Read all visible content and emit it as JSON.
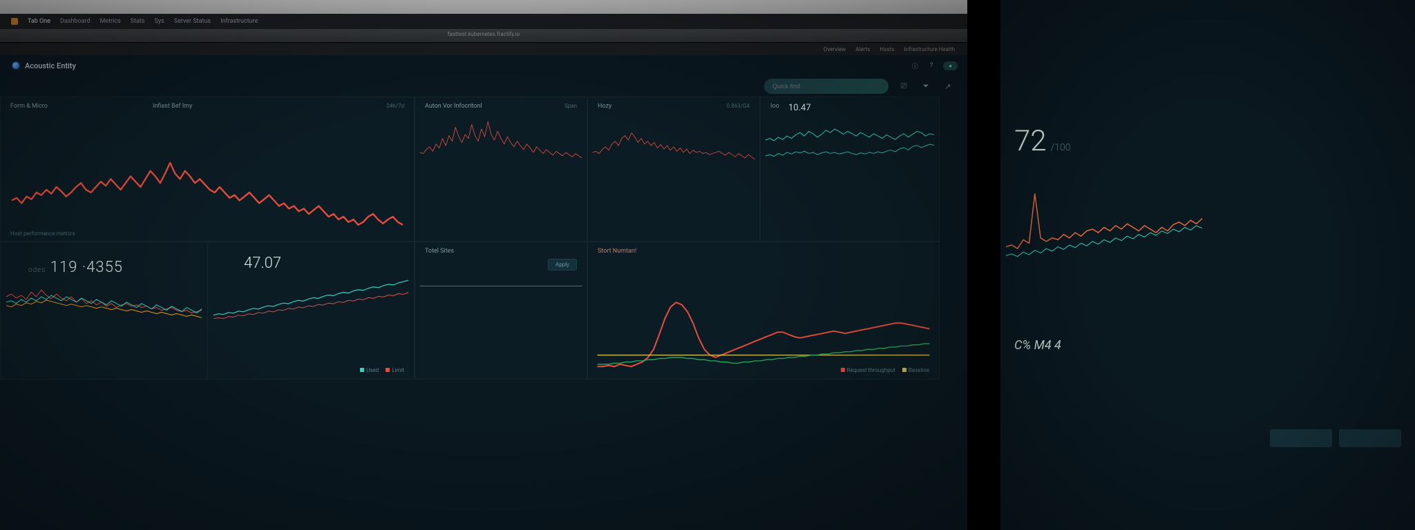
{
  "theme": {
    "bg": "#0c1c24",
    "panel_border": "#14262e",
    "text_muted": "#7a9aa5",
    "text_faint": "#4a6a75",
    "text_value": "#cfe8e0",
    "red": "#e74c3c",
    "teal": "#2dd4bf",
    "orange": "#f39c12",
    "green": "#27ae60",
    "yellow": "#d4c05a"
  },
  "browser": {
    "tabs": [
      "Tab One",
      "Dashboard",
      "Metrics",
      "Stats",
      "Sys",
      "Server Status",
      "Infrastructure"
    ],
    "active_tab": 1,
    "url_hint": "fasttest.kubernetes.fractify.io",
    "subnav": [
      "Overview",
      "Alerts",
      "Hosts",
      "Infrastructure Health"
    ],
    "header_icons": [
      "info",
      "help",
      "status"
    ]
  },
  "app": {
    "brand": "Acoustic Entity",
    "search_placeholder": "Quick find",
    "toolbar_icons": [
      "filter",
      "share"
    ]
  },
  "panels": {
    "p1": {
      "title": "Form & Micro",
      "title2": "Infiast Bef lmy",
      "right_label": "24h/7d",
      "type": "line",
      "color": "#e74c3c",
      "line_width": 1.2,
      "ylim": [
        0,
        100
      ],
      "values": [
        52,
        54,
        50,
        55,
        53,
        58,
        56,
        60,
        57,
        62,
        59,
        55,
        58,
        62,
        65,
        60,
        58,
        62,
        66,
        63,
        68,
        64,
        60,
        65,
        70,
        66,
        62,
        68,
        74,
        70,
        65,
        72,
        80,
        72,
        68,
        74,
        70,
        65,
        68,
        64,
        60,
        58,
        62,
        58,
        54,
        56,
        52,
        55,
        58,
        54,
        50,
        53,
        56,
        52,
        48,
        50,
        46,
        48,
        44,
        46,
        42,
        45,
        48,
        44,
        40,
        42,
        38,
        40,
        36,
        38,
        34,
        36,
        40,
        42,
        38,
        35,
        38,
        40,
        36,
        34
      ],
      "bottom_label": "Host performance metrics"
    },
    "p2": {
      "title": "Auton Vor Infocritonl",
      "right_label": "Span",
      "type": "line",
      "color": "#e74c3c",
      "line_width": 1.0,
      "ylim": [
        0,
        100
      ],
      "values": [
        30,
        28,
        35,
        40,
        32,
        45,
        38,
        55,
        42,
        60,
        50,
        75,
        58,
        48,
        62,
        55,
        80,
        60,
        50,
        72,
        58,
        85,
        62,
        52,
        68,
        55,
        45,
        58,
        48,
        40,
        50,
        42,
        35,
        45,
        38,
        30,
        40,
        34,
        28,
        35,
        30,
        25,
        32,
        28,
        24,
        30,
        26,
        22,
        28,
        24,
        20
      ],
      "bottom_label": ""
    },
    "p3": {
      "title": "Hozy",
      "right_label": "0.863/G4",
      "type": "line",
      "color": "#e74c3c",
      "line_width": 1.0,
      "ylim": [
        0,
        100
      ],
      "values": [
        30,
        32,
        28,
        35,
        40,
        34,
        45,
        50,
        42,
        55,
        60,
        52,
        65,
        58,
        48,
        55,
        45,
        50,
        42,
        48,
        38,
        44,
        36,
        42,
        34,
        40,
        32,
        38,
        30,
        36,
        28,
        34,
        30,
        32,
        28,
        30,
        26,
        28,
        30,
        32,
        28,
        25,
        30,
        26,
        22,
        28,
        24,
        20,
        26,
        22,
        18
      ],
      "bottom_label": ""
    },
    "p4": {
      "title": "Ioo",
      "value": "10.47",
      "type": "multiline",
      "ylim": [
        0,
        100
      ],
      "series": [
        {
          "color": "#2dd4bf",
          "line_width": 1.2,
          "values": [
            55,
            58,
            54,
            60,
            56,
            62,
            58,
            64,
            68,
            62,
            70,
            66,
            60,
            65,
            72,
            68,
            74,
            70,
            65,
            70,
            66,
            62,
            68,
            64,
            60,
            66,
            62,
            58,
            64,
            60,
            56,
            62,
            66,
            60,
            65,
            70,
            68,
            62,
            66,
            64
          ]
        },
        {
          "color": "#2dd4bf",
          "line_width": 1.0,
          "values": [
            28,
            30,
            27,
            32,
            29,
            34,
            31,
            35,
            33,
            36,
            32,
            34,
            30,
            33,
            35,
            32,
            34,
            31,
            33,
            35,
            32,
            30,
            33,
            31,
            34,
            32,
            35,
            33,
            36,
            38,
            35,
            40,
            42,
            38,
            44,
            46,
            42,
            45,
            48,
            46
          ]
        }
      ]
    },
    "p5": {
      "title": "",
      "value_prefix": "odes",
      "value": "119 ·4355",
      "type": "multiline",
      "ylim": [
        0,
        100
      ],
      "series": [
        {
          "color": "#e74c3c",
          "line_width": 1.0,
          "values": [
            48,
            52,
            46,
            50,
            44,
            55,
            48,
            58,
            50,
            45,
            52,
            46,
            42,
            48,
            40,
            45,
            38,
            42,
            36,
            40,
            34,
            38,
            32,
            36,
            38,
            34,
            36,
            32,
            34,
            30,
            32,
            28,
            30,
            32,
            28,
            26,
            28,
            24,
            26,
            28
          ]
        },
        {
          "color": "#2dd4bf",
          "line_width": 1.0,
          "values": [
            40,
            42,
            38,
            44,
            40,
            46,
            42,
            48,
            44,
            50,
            46,
            42,
            48,
            44,
            40,
            46,
            42,
            38,
            44,
            40,
            36,
            42,
            38,
            34,
            40,
            36,
            32,
            38,
            34,
            30,
            36,
            32,
            28,
            34,
            30,
            26,
            32,
            28,
            24,
            30
          ]
        },
        {
          "color": "#f39c12",
          "line_width": 1.0,
          "values": [
            35,
            33,
            37,
            35,
            39,
            37,
            41,
            39,
            43,
            41,
            39,
            37,
            35,
            37,
            35,
            33,
            35,
            33,
            31,
            33,
            31,
            29,
            31,
            29,
            27,
            29,
            27,
            25,
            27,
            25,
            23,
            25,
            23,
            21,
            23,
            21,
            19,
            21,
            19,
            17
          ]
        }
      ],
      "bottom_label": "Legend at bottom"
    },
    "p6": {
      "title": "",
      "value": "47.07",
      "type": "multiline",
      "ylim": [
        0,
        100
      ],
      "series": [
        {
          "color": "#2dd4bf",
          "line_width": 1.2,
          "values": [
            20,
            22,
            21,
            24,
            23,
            26,
            25,
            28,
            30,
            29,
            32,
            34,
            33,
            36,
            38,
            37,
            40,
            42,
            41,
            44,
            46,
            45,
            48,
            50,
            49,
            52,
            54,
            53,
            56,
            58,
            57,
            60,
            62,
            61,
            64,
            66,
            65,
            68,
            70,
            72
          ]
        },
        {
          "color": "#e74c3c",
          "line_width": 1.0,
          "values": [
            15,
            16,
            15,
            18,
            17,
            20,
            19,
            22,
            21,
            24,
            23,
            26,
            25,
            28,
            27,
            30,
            29,
            32,
            31,
            34,
            33,
            36,
            35,
            38,
            37,
            40,
            39,
            42,
            41,
            44,
            43,
            46,
            45,
            48,
            47,
            50,
            49,
            52,
            51,
            54
          ]
        }
      ],
      "legend": [
        "Used",
        "Limit"
      ]
    },
    "p7": {
      "title": "Totel Sites",
      "button": "Apply",
      "type": "line",
      "color": "#8a9aa0",
      "line_width": 0.8,
      "ylim": [
        0,
        100
      ],
      "values": [
        50,
        50,
        50,
        50,
        50,
        50,
        50,
        50,
        50,
        50,
        50,
        50,
        50,
        50,
        50,
        50,
        50,
        50,
        50,
        50,
        50,
        50,
        50,
        50,
        50,
        50,
        50,
        50,
        50,
        50,
        50,
        50,
        50,
        50,
        50,
        50,
        50,
        50,
        50,
        50
      ]
    },
    "p8": {
      "title": "Stort Numtan!",
      "type": "multiline",
      "ylim": [
        0,
        100
      ],
      "series": [
        {
          "color": "#e74c3c",
          "line_width": 1.2,
          "values": [
            20,
            20,
            21,
            20,
            22,
            21,
            20,
            22,
            24,
            28,
            35,
            48,
            62,
            72,
            76,
            74,
            68,
            58,
            45,
            35,
            30,
            28,
            30,
            32,
            34,
            36,
            38,
            40,
            42,
            44,
            46,
            48,
            50,
            50,
            48,
            46,
            45,
            46,
            47,
            48,
            49,
            50,
            51,
            50,
            49,
            50,
            51,
            52,
            53,
            54,
            55,
            56,
            57,
            58,
            58,
            57,
            56,
            55,
            54,
            53
          ]
        },
        {
          "color": "#d4c05a",
          "line_width": 0.8,
          "values": [
            30,
            30,
            30,
            30,
            30,
            30,
            30,
            30,
            30,
            30,
            30,
            30,
            30,
            30,
            30,
            30,
            30,
            30,
            30,
            30,
            30,
            30,
            30,
            30,
            30,
            30,
            30,
            30,
            30,
            30,
            30,
            30,
            30,
            30,
            30,
            30,
            30,
            30,
            30,
            30,
            30,
            30,
            30,
            30,
            30,
            30,
            30,
            30,
            30,
            30,
            30,
            30,
            30,
            30,
            30,
            30,
            30,
            30,
            30,
            30
          ]
        },
        {
          "color": "#27ae60",
          "line_width": 0.8,
          "values": [
            22,
            22,
            22,
            23,
            23,
            24,
            24,
            25,
            25,
            26,
            26,
            27,
            27,
            28,
            28,
            28,
            27,
            27,
            26,
            26,
            25,
            25,
            24,
            24,
            23,
            23,
            24,
            24,
            25,
            25,
            26,
            26,
            27,
            27,
            28,
            28,
            29,
            29,
            30,
            30,
            31,
            31,
            32,
            32,
            33,
            33,
            34,
            34,
            35,
            35,
            36,
            36,
            37,
            37,
            38,
            38,
            39,
            39,
            40,
            40
          ]
        }
      ],
      "legend": [
        "Request throughput",
        "Baseline"
      ]
    }
  },
  "side_monitor": {
    "big_value": "72",
    "big_unit": "/100",
    "chart": {
      "type": "multiline",
      "ylim": [
        0,
        100
      ],
      "series": [
        {
          "color": "#e86a3a",
          "line_width": 1.5,
          "values": [
            30,
            32,
            28,
            38,
            34,
            90,
            40,
            36,
            40,
            38,
            44,
            40,
            46,
            42,
            48,
            50,
            46,
            52,
            48,
            54,
            50,
            56,
            52,
            48,
            54,
            50,
            46,
            52,
            48,
            55,
            58,
            54,
            60,
            56,
            62
          ]
        },
        {
          "color": "#2dd4bf",
          "line_width": 1.0,
          "values": [
            20,
            22,
            19,
            24,
            21,
            26,
            23,
            28,
            25,
            30,
            27,
            32,
            29,
            34,
            31,
            36,
            33,
            38,
            35,
            40,
            37,
            42,
            39,
            44,
            41,
            46,
            43,
            48,
            45,
            50,
            47,
            52,
            49,
            54,
            51
          ]
        }
      ]
    },
    "label": "C% M4 4"
  }
}
